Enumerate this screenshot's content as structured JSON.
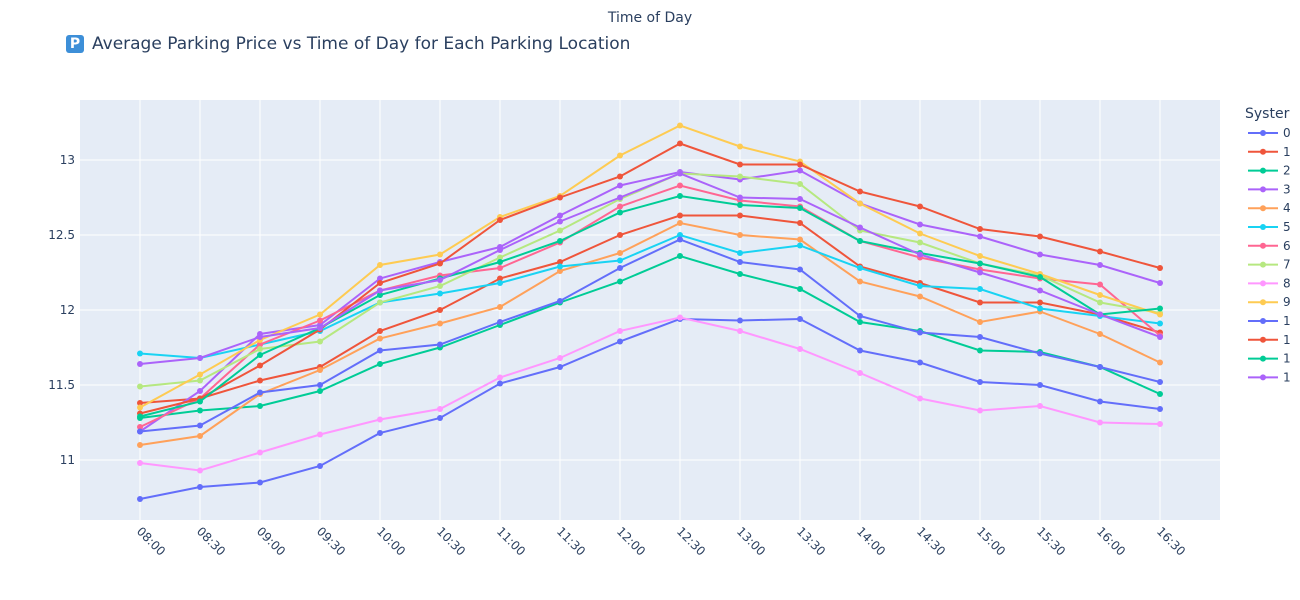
{
  "chart_data": {
    "type": "line",
    "title": "Average Parking Price vs Time of Day for Each Parking Location",
    "title_icon": "parking-sign-icon",
    "xlabel": "Time of Day",
    "ylabel": "",
    "legend_title": "Syster",
    "legend_position": "right",
    "grid": true,
    "ylim": [
      10.6,
      13.4
    ],
    "yticks": [
      11,
      11.5,
      12,
      12.5,
      13
    ],
    "categories": [
      "08:00",
      "08:30",
      "09:00",
      "09:30",
      "10:00",
      "10:30",
      "11:00",
      "11:30",
      "12:00",
      "12:30",
      "13:00",
      "13:30",
      "14:00",
      "14:30",
      "15:00",
      "15:30",
      "16:00",
      "16:30"
    ],
    "series": [
      {
        "name": "0",
        "color": "#636efa",
        "values": [
          10.74,
          10.82,
          10.85,
          10.96,
          11.18,
          11.28,
          11.51,
          11.62,
          11.79,
          11.94,
          11.93,
          11.94,
          11.73,
          11.65,
          11.52,
          11.5,
          11.39,
          11.34
        ]
      },
      {
        "name": "1",
        "color": "#ef553b",
        "values": [
          11.38,
          11.41,
          11.53,
          11.62,
          11.86,
          12.0,
          12.21,
          12.32,
          12.5,
          12.63,
          12.63,
          12.58,
          12.29,
          12.18,
          12.05,
          12.05,
          11.97,
          11.85
        ]
      },
      {
        "name": "2",
        "color": "#00cc96",
        "values": [
          11.28,
          11.33,
          11.36,
          11.46,
          11.64,
          11.75,
          11.9,
          12.05,
          12.19,
          12.36,
          12.24,
          12.14,
          11.92,
          11.86,
          11.73,
          11.72,
          11.62,
          11.44
        ]
      },
      {
        "name": "3",
        "color": "#ab63fa",
        "values": [
          11.19,
          11.46,
          11.84,
          11.9,
          12.21,
          12.32,
          12.42,
          12.63,
          12.83,
          12.92,
          12.87,
          12.93,
          12.71,
          12.57,
          12.49,
          12.37,
          12.3,
          12.18
        ]
      },
      {
        "name": "4",
        "color": "#ffa15a",
        "values": [
          11.1,
          11.16,
          11.44,
          11.6,
          11.81,
          11.91,
          12.02,
          12.26,
          12.38,
          12.58,
          12.5,
          12.47,
          12.19,
          12.09,
          11.92,
          11.99,
          11.84,
          11.65
        ]
      },
      {
        "name": "5",
        "color": "#19d3f3",
        "values": [
          11.71,
          11.68,
          11.77,
          11.86,
          12.05,
          12.11,
          12.18,
          12.29,
          12.33,
          12.5,
          12.38,
          12.43,
          12.28,
          12.16,
          12.14,
          12.01,
          11.96,
          11.91
        ]
      },
      {
        "name": "6",
        "color": "#ff6692",
        "values": [
          11.22,
          11.41,
          11.77,
          11.93,
          12.13,
          12.23,
          12.28,
          12.45,
          12.69,
          12.83,
          12.73,
          12.69,
          12.46,
          12.35,
          12.27,
          12.21,
          12.17,
          11.83
        ]
      },
      {
        "name": "7",
        "color": "#b6e880",
        "values": [
          11.49,
          11.53,
          11.74,
          11.79,
          12.05,
          12.16,
          12.35,
          12.53,
          12.74,
          12.91,
          12.89,
          12.84,
          12.53,
          12.45,
          12.31,
          12.23,
          12.05,
          11.98
        ]
      },
      {
        "name": "8",
        "color": "#ff97ff",
        "values": [
          10.98,
          10.93,
          11.05,
          11.17,
          11.27,
          11.34,
          11.55,
          11.68,
          11.86,
          11.95,
          11.86,
          11.74,
          11.58,
          11.41,
          11.33,
          11.36,
          11.25,
          11.24
        ]
      },
      {
        "name": "9",
        "color": "#fecb52",
        "values": [
          11.35,
          11.57,
          11.8,
          11.97,
          12.3,
          12.37,
          12.62,
          12.76,
          13.03,
          13.23,
          13.09,
          12.99,
          12.71,
          12.51,
          12.36,
          12.24,
          12.1,
          11.97
        ]
      },
      {
        "name": "1",
        "color": "#636efa",
        "values": [
          11.19,
          11.23,
          11.45,
          11.5,
          11.73,
          11.77,
          11.92,
          12.06,
          12.28,
          12.47,
          12.32,
          12.27,
          11.96,
          11.85,
          11.82,
          11.71,
          11.62,
          11.52
        ]
      },
      {
        "name": "1",
        "color": "#ef553b",
        "values": [
          11.31,
          11.41,
          11.63,
          11.87,
          12.18,
          12.31,
          12.6,
          12.75,
          12.89,
          13.11,
          12.97,
          12.97,
          12.79,
          12.69,
          12.54,
          12.49,
          12.39,
          12.28
        ]
      },
      {
        "name": "1",
        "color": "#00cc96",
        "values": [
          11.29,
          11.39,
          11.7,
          11.88,
          12.1,
          12.21,
          12.32,
          12.46,
          12.65,
          12.76,
          12.7,
          12.68,
          12.46,
          12.38,
          12.31,
          12.22,
          11.97,
          12.01
        ]
      },
      {
        "name": "1",
        "color": "#ab63fa",
        "values": [
          11.64,
          11.68,
          11.82,
          11.88,
          12.13,
          12.2,
          12.4,
          12.59,
          12.75,
          12.91,
          12.75,
          12.74,
          12.55,
          12.37,
          12.25,
          12.13,
          11.97,
          11.82
        ]
      }
    ]
  }
}
